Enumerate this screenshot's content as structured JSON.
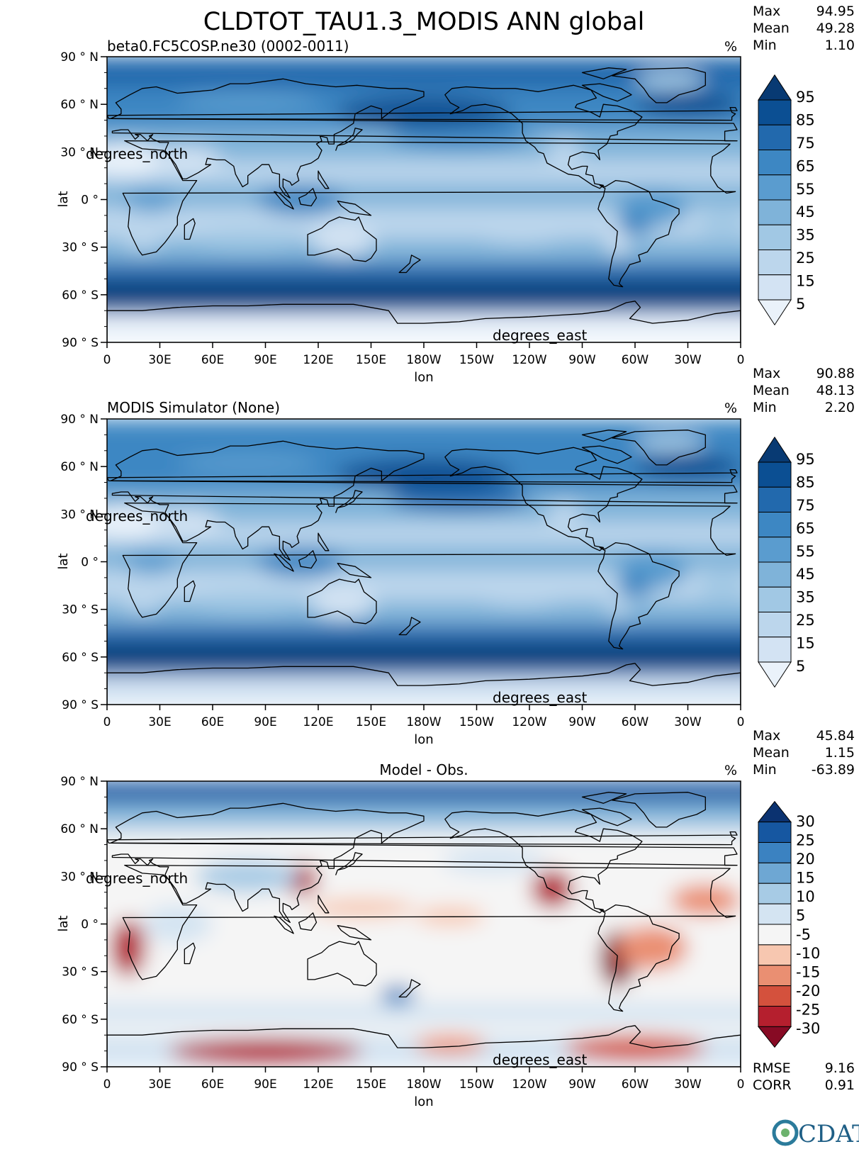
{
  "title": "CLDTOT_TAU1.3_MODIS ANN global",
  "logo_text": "CDAT",
  "colors": {
    "blues": [
      "#eaf2fa",
      "#d3e3f3",
      "#bcd6ec",
      "#a1c8e4",
      "#7fb3d9",
      "#5a9ccf",
      "#3d87c3",
      "#2269ad",
      "#0b4f93",
      "#083a73"
    ],
    "diverging": [
      "#870a24",
      "#b51f2e",
      "#d4513d",
      "#ea8f72",
      "#f7c7b0",
      "#f5f5f5",
      "#d4e4f2",
      "#a7cbe5",
      "#6ea7d3",
      "#3b82c1",
      "#1657a1",
      "#0b3270"
    ]
  },
  "chart_data": [
    {
      "type": "heatmap",
      "title": "beta0.FC5COSP.ne30 (0002-0011)",
      "units": "%",
      "stats": [
        {
          "label": "Max",
          "value": "94.95"
        },
        {
          "label": "Mean",
          "value": "49.28"
        },
        {
          "label": "Min",
          "value": "1.10"
        }
      ],
      "xlabel": "lon",
      "ylabel": "lat",
      "x_units": "degrees_east",
      "y_units": "degrees_north",
      "x_ticks": [
        "0",
        "30E",
        "60E",
        "90E",
        "120E",
        "150E",
        "180W",
        "150W",
        "120W",
        "90W",
        "60W",
        "30W",
        "0"
      ],
      "y_ticks": [
        "90 ° N",
        "60 ° N",
        "30 ° N",
        "0 °",
        "30 ° S",
        "60 ° S",
        "90 ° S"
      ],
      "colorbar_levels": [
        "95",
        "85",
        "75",
        "65",
        "55",
        "45",
        "35",
        "25",
        "15",
        "5"
      ],
      "colormap": "blues",
      "field": "total"
    },
    {
      "type": "heatmap",
      "title": "MODIS Simulator (None)",
      "units": "%",
      "stats": [
        {
          "label": "Max",
          "value": "90.88"
        },
        {
          "label": "Mean",
          "value": "48.13"
        },
        {
          "label": "Min",
          "value": "2.20"
        }
      ],
      "xlabel": "lon",
      "ylabel": "lat",
      "x_units": "degrees_east",
      "y_units": "degrees_north",
      "x_ticks": [
        "0",
        "30E",
        "60E",
        "90E",
        "120E",
        "150E",
        "180W",
        "150W",
        "120W",
        "90W",
        "60W",
        "30W",
        "0"
      ],
      "y_ticks": [
        "90 ° N",
        "60 ° N",
        "30 ° N",
        "0 °",
        "30 ° S",
        "60 ° S",
        "90 ° S"
      ],
      "colorbar_levels": [
        "95",
        "85",
        "75",
        "65",
        "55",
        "45",
        "35",
        "25",
        "15",
        "5"
      ],
      "colormap": "blues",
      "field": "obs"
    },
    {
      "type": "heatmap",
      "title": "Model - Obs.",
      "units": "%",
      "stats": [
        {
          "label": "Max",
          "value": "45.84"
        },
        {
          "label": "Mean",
          "value": "1.15"
        },
        {
          "label": "Min",
          "value": "-63.89"
        }
      ],
      "bottom_stats": [
        {
          "label": "RMSE",
          "value": "9.16"
        },
        {
          "label": "CORR",
          "value": "0.91"
        }
      ],
      "xlabel": "lon",
      "ylabel": "lat",
      "x_units": "degrees_east",
      "y_units": "degrees_north",
      "x_ticks": [
        "0",
        "30E",
        "60E",
        "90E",
        "120E",
        "150E",
        "180W",
        "150W",
        "120W",
        "90W",
        "60W",
        "30W",
        "0"
      ],
      "y_ticks": [
        "90 ° N",
        "60 ° N",
        "30 ° N",
        "0 °",
        "30 ° S",
        "60 ° S",
        "90 ° S"
      ],
      "colorbar_levels": [
        "30",
        "25",
        "20",
        "15",
        "10",
        "5",
        "-5",
        "-10",
        "-15",
        "-20",
        "-25",
        "-30"
      ],
      "colormap": "diverging",
      "field": "diff"
    }
  ]
}
